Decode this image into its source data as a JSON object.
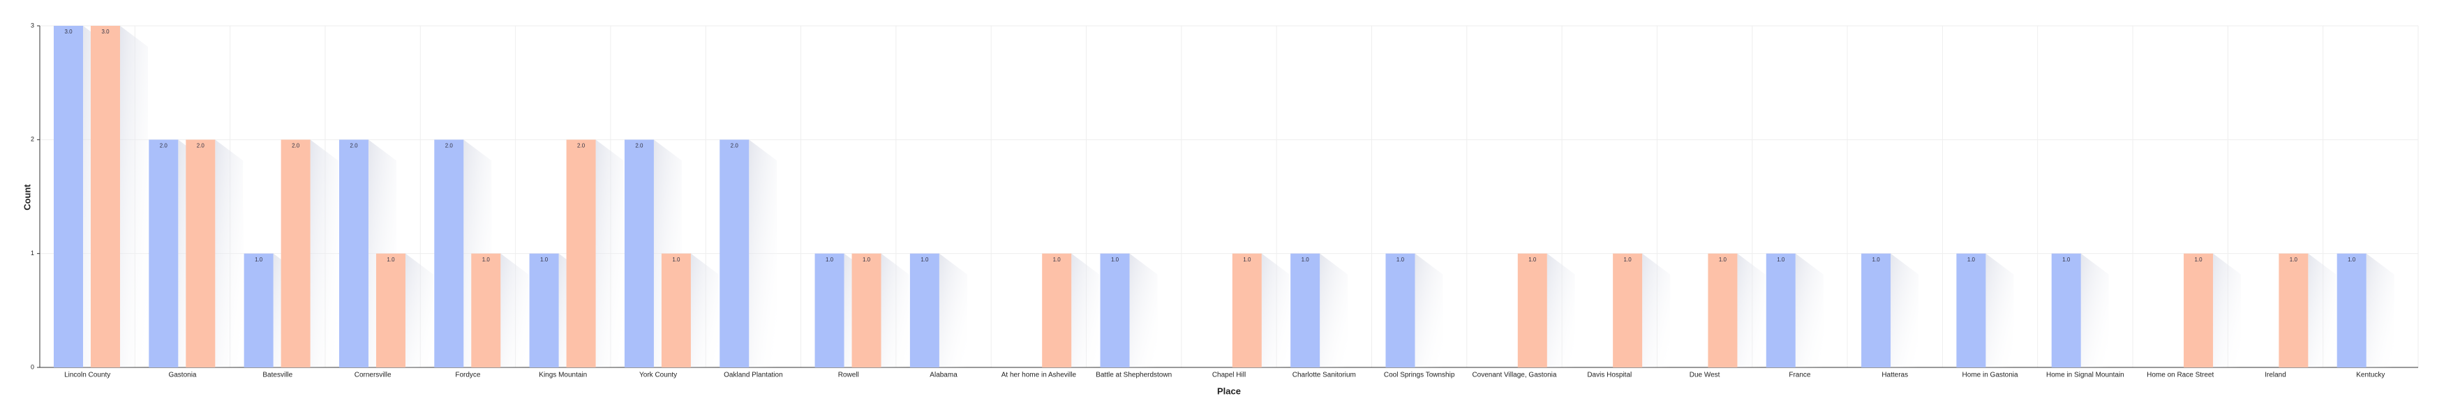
{
  "chart_data": {
    "type": "bar",
    "x_label": "Place",
    "y_label": "Count",
    "categories": [
      "Lincoln County",
      "Gastonia",
      "Batesville",
      "Cornersville",
      "Fordyce",
      "Kings Mountain",
      "York County",
      "Oakland Plantation",
      "Rowell",
      "Alabama",
      "At her home in Asheville",
      "Battle at Shepherdstown",
      "Chapel Hill",
      "Charlotte Sanitorium",
      "Cool Springs Township",
      "Covenant Village, Gastonia",
      "Davis Hospital",
      "Due West",
      "France",
      "Hatteras",
      "Home in Gastonia",
      "Home in Signal Mountain",
      "Home on Race Street",
      "Ireland",
      "Kentucky"
    ],
    "series": [
      {
        "color": "#aabffa",
        "values": [
          3,
          2,
          1,
          2,
          2,
          1,
          2,
          2,
          1,
          1,
          null,
          1,
          null,
          1,
          1,
          null,
          null,
          null,
          1,
          1,
          1,
          1,
          null,
          null,
          1
        ],
        "value_labels": [
          "3.0",
          "2.0",
          "1.0",
          "2.0",
          "2.0",
          "1.0",
          "2.0",
          "2.0",
          "1.0",
          "1.0",
          null,
          "1.0",
          null,
          "1.0",
          "1.0",
          null,
          null,
          null,
          "1.0",
          "1.0",
          "1.0",
          "1.0",
          null,
          null,
          "1.0"
        ]
      },
      {
        "color": "#fdc1a8",
        "values": [
          3,
          2,
          2,
          1,
          1,
          2,
          1,
          null,
          1,
          null,
          1,
          null,
          1,
          null,
          null,
          1,
          1,
          1,
          null,
          null,
          null,
          null,
          1,
          1,
          null
        ],
        "value_labels": [
          "3.0",
          "2.0",
          "2.0",
          "1.0",
          "1.0",
          "2.0",
          "1.0",
          null,
          "1.0",
          null,
          "1.0",
          null,
          "1.0",
          null,
          null,
          "1.0",
          "1.0",
          "1.0",
          null,
          null,
          null,
          null,
          "1.0",
          "1.0",
          null
        ]
      }
    ],
    "ylim": [
      0,
      3
    ],
    "yticks": [
      0,
      1,
      2,
      3
    ],
    "grid": true
  }
}
